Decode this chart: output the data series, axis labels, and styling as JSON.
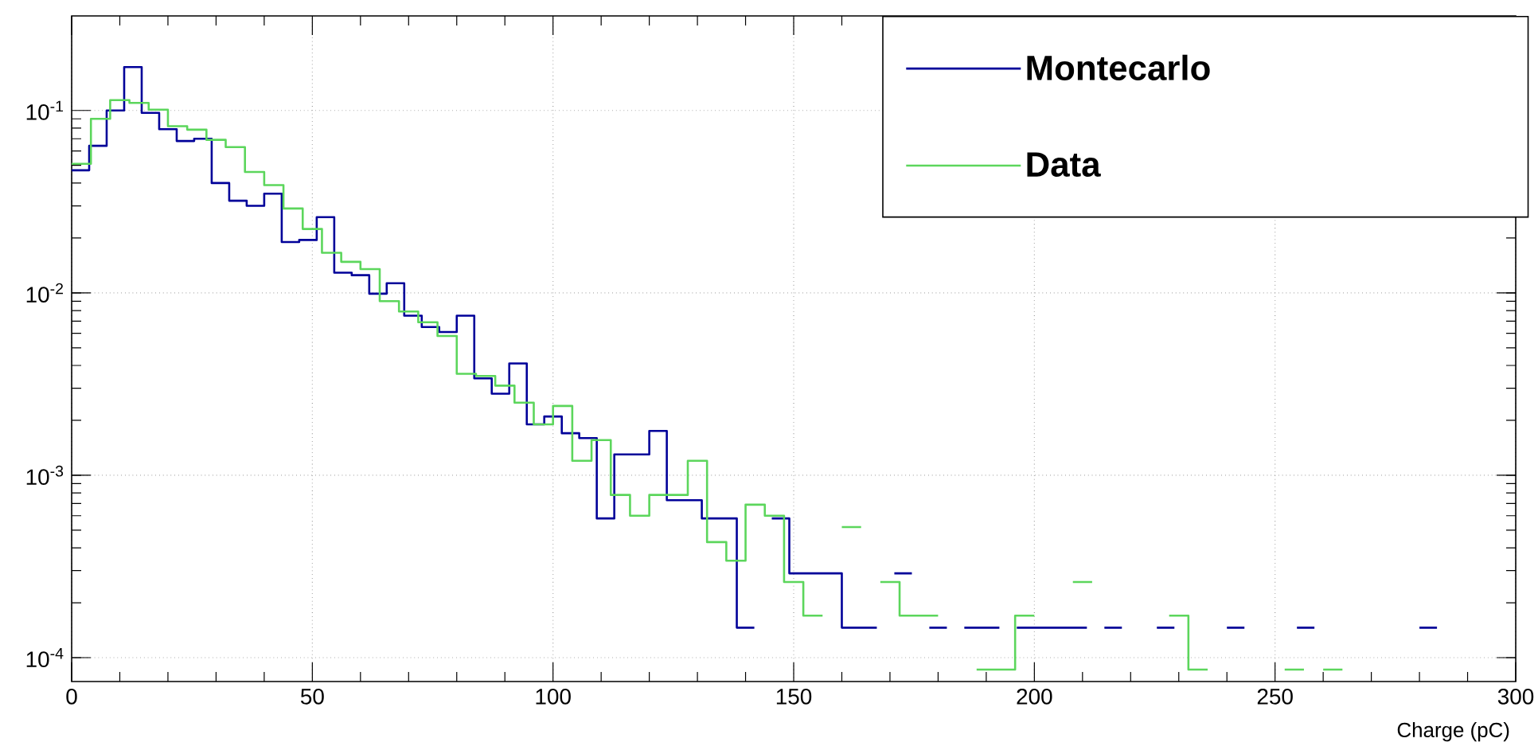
{
  "chart_data": {
    "type": "step",
    "xlabel": "Charge (pC)",
    "log": "y",
    "grid": true,
    "legend": "top right",
    "xlim": [
      0,
      300
    ],
    "ylim": [
      7.4e-05,
      0.33
    ],
    "xticks": [
      0,
      50,
      100,
      150,
      200,
      250,
      300
    ],
    "yticks": [
      {
        "value": 0.0001,
        "label": "10$^{-4}$"
      },
      {
        "value": 0.001,
        "label": "10$^{-3}$"
      },
      {
        "value": 0.01,
        "label": "10$^{-2}$"
      },
      {
        "value": 0.1,
        "label": "10$^{-1}$"
      }
    ],
    "series": [
      {
        "name": "Montecarlo",
        "color": "#000099",
        "x": [
          0,
          3.64,
          7.27,
          10.91,
          14.55,
          18.18,
          21.82,
          25.45,
          29.09,
          32.73,
          36.36,
          40,
          43.64,
          47.27,
          50.91,
          54.55,
          58.18,
          61.82,
          65.45,
          69.09,
          72.73,
          76.36,
          80,
          83.64,
          87.27,
          90.91,
          94.55,
          98.18,
          101.82,
          105.45,
          109.09,
          112.73,
          116.36,
          120,
          123.64,
          127.27,
          130.91,
          134.55,
          138.18,
          141.82,
          145.45,
          149.09,
          152.73,
          156.36,
          160,
          163.64,
          167.27,
          170.91,
          174.55,
          178.18,
          181.82,
          185.45,
          189.09,
          192.73,
          196.36,
          200,
          203.64,
          207.27,
          210.91,
          214.55,
          218.18,
          221.82,
          225.45,
          229.09,
          232.73,
          236.36,
          240,
          243.64,
          247.27,
          250.91,
          254.55,
          258.18,
          261.82,
          265.45,
          269.09,
          272.73,
          276.36,
          280,
          283.64
        ],
        "values": [
          0.047,
          0.064,
          0.1,
          0.173,
          0.097,
          0.079,
          0.068,
          0.07,
          0.04,
          0.032,
          0.03,
          0.035,
          0.019,
          0.0195,
          0.026,
          0.0129,
          0.0125,
          0.0099,
          0.0113,
          0.0075,
          0.0065,
          0.0061,
          0.0075,
          0.0034,
          0.0028,
          0.0041,
          0.0019,
          0.0021,
          0.0017,
          0.0016,
          0.00058,
          0.0013,
          0.0013,
          0.00175,
          0.00073,
          0.00073,
          0.00058,
          0.00058,
          0.000146,
          null,
          0.00058,
          0.00029,
          0.00029,
          0.00029,
          0.000146,
          0.000146,
          null,
          0.00029,
          null,
          0.000146,
          null,
          0.000146,
          0.000146,
          null,
          0.000146,
          0.000146,
          0.000146,
          0.000146,
          null,
          0.000146,
          null,
          null,
          0.000146,
          null,
          null,
          null,
          0.000146,
          null,
          null,
          null,
          0.000146,
          null,
          null,
          null,
          null,
          null,
          null,
          0.000146,
          0.000146
        ]
      },
      {
        "name": "Data",
        "color": "#5cd65c",
        "x": [
          0,
          4,
          8,
          12,
          16,
          20,
          24,
          28,
          32,
          36,
          40,
          44,
          48,
          52,
          56,
          60,
          64,
          68,
          72,
          76,
          80,
          84,
          88,
          92,
          96,
          100,
          104,
          108,
          112,
          116,
          120,
          124,
          128,
          132,
          136,
          140,
          144,
          148,
          152,
          156,
          160,
          164,
          168,
          172,
          176,
          180,
          184,
          188,
          192,
          196,
          200,
          204,
          208,
          212,
          216,
          220,
          224,
          228,
          232,
          236,
          240,
          244,
          248,
          252,
          256,
          260,
          264
        ],
        "values": [
          0.051,
          0.09,
          0.114,
          0.11,
          0.101,
          0.082,
          0.0785,
          0.069,
          0.063,
          0.046,
          0.039,
          0.029,
          0.0224,
          0.0166,
          0.0148,
          0.0135,
          0.009,
          0.0079,
          0.0069,
          0.0058,
          0.0036,
          0.0035,
          0.0031,
          0.0025,
          0.0019,
          0.0024,
          0.0012,
          0.00156,
          0.00078,
          0.0006,
          0.00078,
          0.00078,
          0.0012,
          0.00043,
          0.00034,
          0.00069,
          0.0006,
          0.00026,
          0.00017,
          null,
          0.00052,
          null,
          0.00026,
          0.00017,
          0.00017,
          null,
          null,
          8.6e-05,
          8.6e-05,
          0.00017,
          null,
          null,
          0.00026,
          null,
          null,
          null,
          null,
          0.00017,
          8.6e-05,
          null,
          null,
          null,
          null,
          8.6e-05,
          null,
          8.6e-05,
          8.6e-05
        ]
      }
    ]
  }
}
